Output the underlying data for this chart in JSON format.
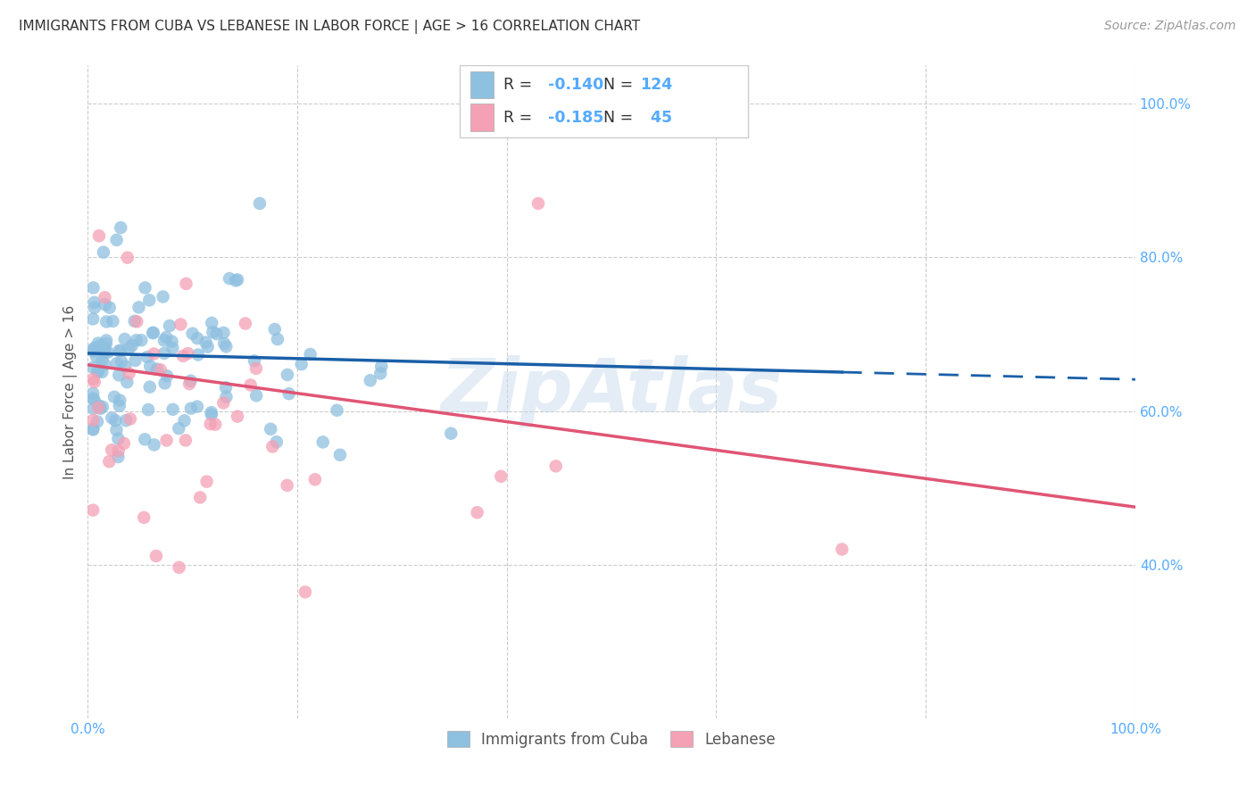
{
  "title": "IMMIGRANTS FROM CUBA VS LEBANESE IN LABOR FORCE | AGE > 16 CORRELATION CHART",
  "source": "Source: ZipAtlas.com",
  "ylabel": "In Labor Force | Age > 16",
  "watermark": "ZipAtlas",
  "xlim": [
    0.0,
    1.0
  ],
  "ylim": [
    0.2,
    1.05
  ],
  "x_ticks": [
    0.0,
    0.2,
    0.4,
    0.6,
    0.8,
    1.0
  ],
  "y_ticks_right": [
    1.0,
    0.8,
    0.6,
    0.4
  ],
  "y_tick_labels_right": [
    "100.0%",
    "80.0%",
    "60.0%",
    "40.0%"
  ],
  "cuba_color": "#8ec0e0",
  "lebanese_color": "#f4a0b5",
  "cuba_line_color": "#1a5fa8",
  "lebanese_line_color": "#e05575",
  "R_cuba": -0.14,
  "N_cuba": 124,
  "R_lebanese": -0.185,
  "N_lebanese": 45,
  "cuba_trendline_x": [
    0.0,
    0.72,
    1.0
  ],
  "cuba_trendline_y": [
    0.675,
    0.651,
    0.641
  ],
  "cuba_trendline_solid_end": 0.72,
  "lebanese_trendline_x": [
    0.0,
    1.0
  ],
  "lebanese_trendline_y": [
    0.66,
    0.475
  ],
  "background_color": "#ffffff",
  "grid_color": "#cccccc",
  "scatter_seed": 42,
  "scatter_marker_size": 110
}
